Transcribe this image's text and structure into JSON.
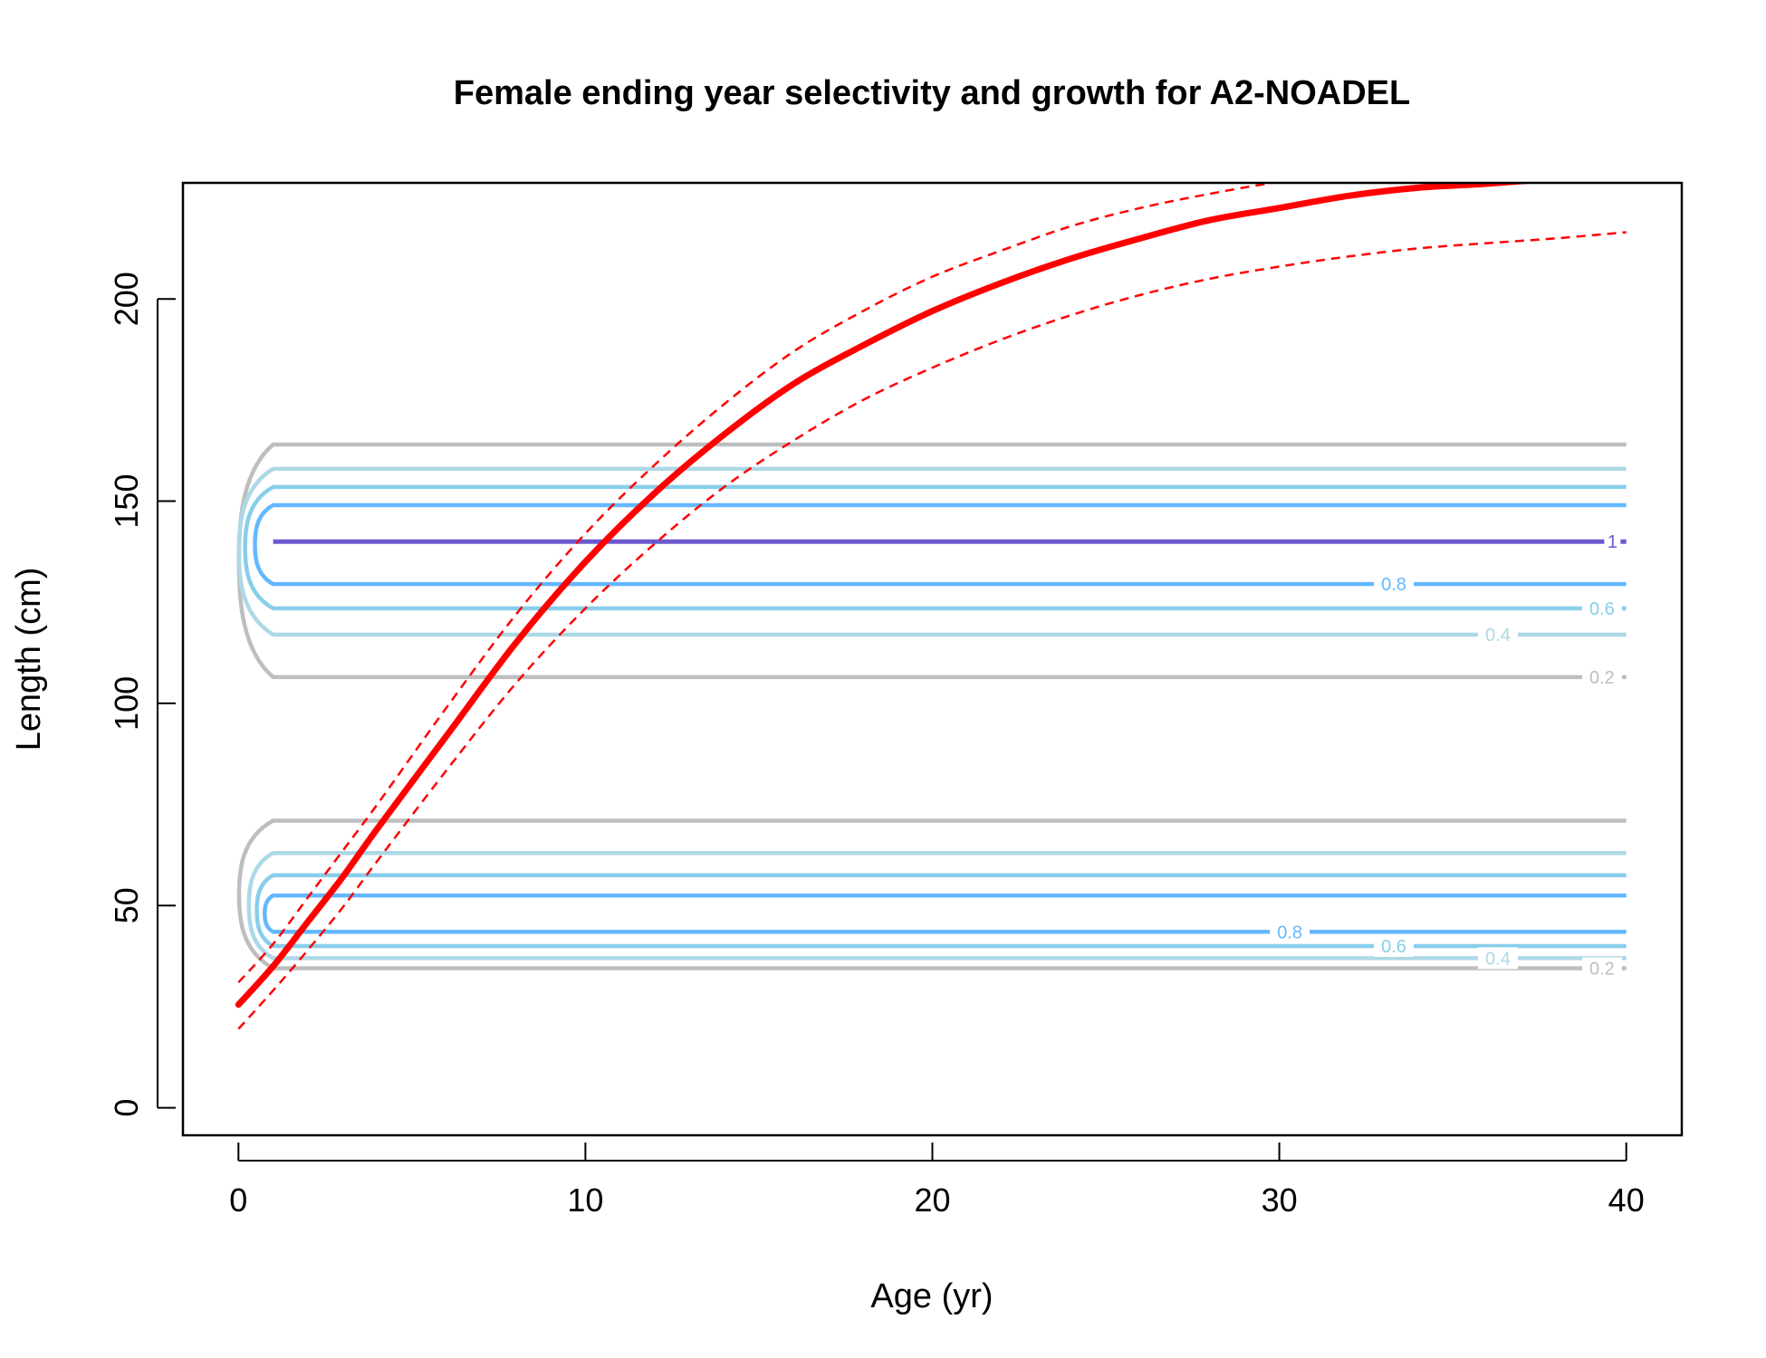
{
  "chart_data": {
    "type": "line",
    "title": "Female ending year selectivity and growth for A2-NOADEL",
    "xlabel": "Age (yr)",
    "ylabel": "Length (cm)",
    "xlim": [
      -1.6,
      41.6
    ],
    "ylim": [
      -6.8,
      228.7
    ],
    "xticks": [
      0,
      10,
      20,
      30,
      40
    ],
    "yticks": [
      0,
      50,
      100,
      150,
      200
    ],
    "grid": false,
    "colors": {
      "growth": "#ff0000",
      "contour_1": "#6a5acd",
      "contour_0_8": "#63b8ff",
      "contour_0_6": "#87ceeb",
      "contour_0_4": "#add8e6",
      "contour_0_2": "#bebebe"
    },
    "growth": {
      "x": [
        0,
        1,
        2,
        3,
        4,
        6,
        8,
        10,
        12,
        14,
        16,
        18,
        20,
        22,
        24,
        26,
        28,
        30,
        32,
        34,
        36,
        38,
        40
      ],
      "mean": [
        25.5,
        35,
        46,
        57,
        69,
        92,
        115,
        135,
        152,
        166.5,
        179,
        188.5,
        197,
        204,
        210,
        215,
        219.5,
        222.5,
        225.5,
        227.5,
        228.5,
        229.8,
        231.3
      ],
      "upper": [
        31,
        40.5,
        52,
        63.5,
        75,
        99,
        122,
        142,
        159,
        174,
        187,
        197,
        205.5,
        212,
        218,
        222.5,
        226,
        229,
        231.5,
        233,
        234,
        235,
        236
      ],
      "lower": [
        19.5,
        29,
        39,
        49.5,
        61,
        83.5,
        105,
        123.5,
        139.5,
        153.5,
        165,
        175,
        183,
        190,
        196,
        201,
        205,
        208,
        210.5,
        212.5,
        213.8,
        215,
        216.5
      ]
    },
    "contours": [
      {
        "level": "1",
        "y": [
          140
        ],
        "color": "#6a5acd"
      },
      {
        "level": "0.8",
        "color": "#63b8ff",
        "y": [
          149,
          129.5,
          52.5,
          43.5
        ]
      },
      {
        "level": "0.6",
        "color": "#87ceeb",
        "y": [
          153.5,
          123.5,
          57.5,
          40
        ]
      },
      {
        "level": "0.4",
        "color": "#add8e6",
        "y": [
          158,
          117,
          63,
          37
        ]
      },
      {
        "level": "0.2",
        "color": "#bebebe",
        "y": [
          164,
          106.5,
          71,
          34.5
        ]
      }
    ],
    "contour_labels": [
      {
        "text": "1",
        "x": 39.6,
        "y": 140,
        "color": "#6a5acd"
      },
      {
        "text": "0.8",
        "x": 33.3,
        "y": 129.5,
        "color": "#63b8ff"
      },
      {
        "text": "0.6",
        "x": 39.3,
        "y": 123.5,
        "color": "#87ceeb"
      },
      {
        "text": "0.4",
        "x": 36.3,
        "y": 117,
        "color": "#add8e6"
      },
      {
        "text": "0.2",
        "x": 39.3,
        "y": 106.5,
        "color": "#bebebe"
      },
      {
        "text": "0.8",
        "x": 30.3,
        "y": 43.5,
        "color": "#63b8ff"
      },
      {
        "text": "0.6",
        "x": 33.3,
        "y": 40,
        "color": "#87ceeb"
      },
      {
        "text": "0.4",
        "x": 36.3,
        "y": 37,
        "color": "#add8e6"
      },
      {
        "text": "0.2",
        "x": 39.3,
        "y": 34.5,
        "color": "#bebebe"
      }
    ]
  }
}
